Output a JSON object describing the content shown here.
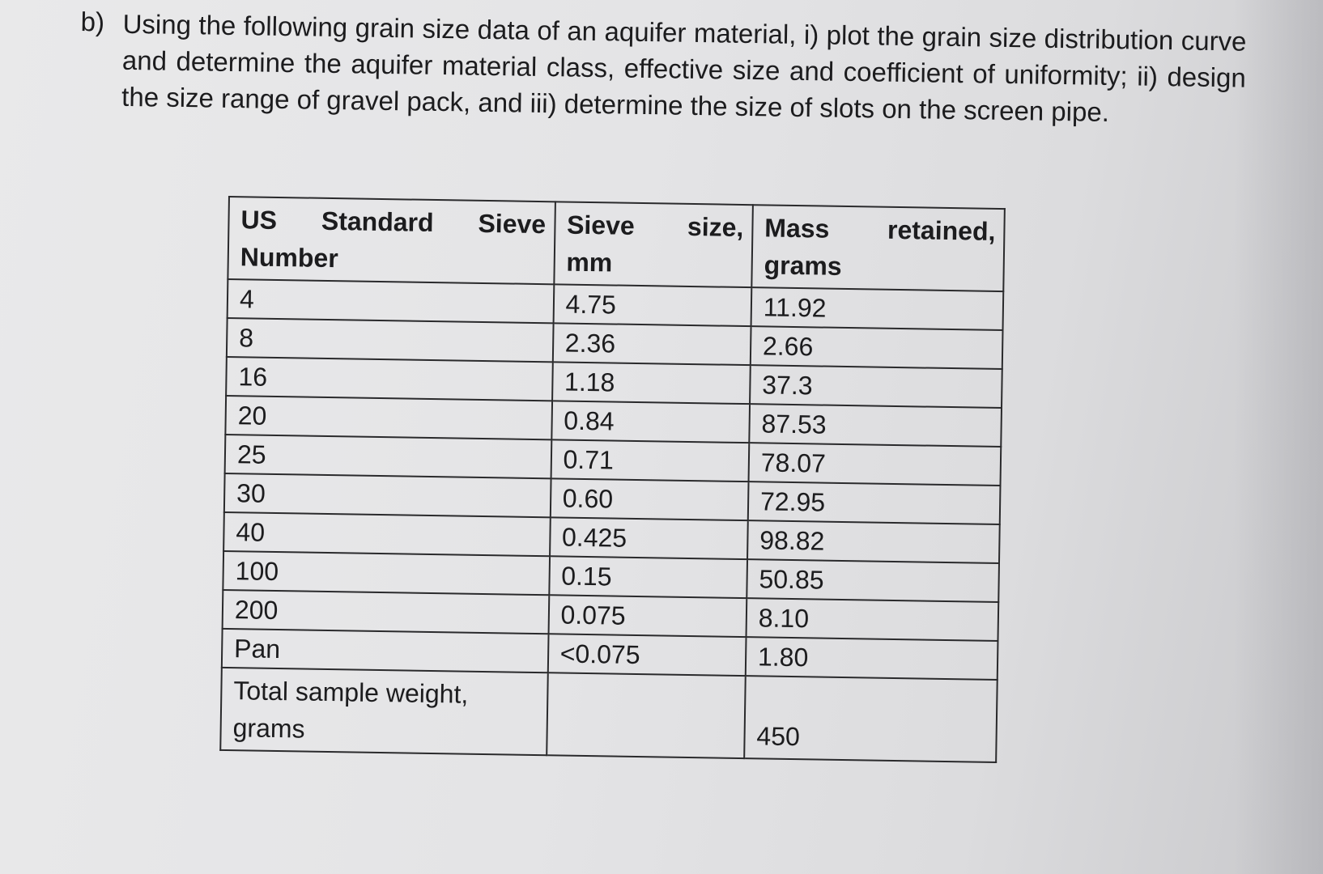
{
  "question": {
    "label": "b)",
    "text": "Using the following grain size data of an aquifer material, i) plot the grain size distribution curve and determine the aquifer material class, effective size and coefficient of uniformity; ii) design the size range of gravel pack, and iii) determine the size of slots on the screen pipe."
  },
  "table": {
    "headers": [
      "US Standard Sieve Number",
      "Sieve size, mm",
      "Mass retained, grams"
    ],
    "rows": [
      {
        "sieve_number": "4",
        "sieve_size_mm": "4.75",
        "mass_retained_g": "11.92"
      },
      {
        "sieve_number": "8",
        "sieve_size_mm": "2.36",
        "mass_retained_g": "2.66"
      },
      {
        "sieve_number": "16",
        "sieve_size_mm": "1.18",
        "mass_retained_g": "37.3"
      },
      {
        "sieve_number": "20",
        "sieve_size_mm": "0.84",
        "mass_retained_g": "87.53"
      },
      {
        "sieve_number": "25",
        "sieve_size_mm": "0.71",
        "mass_retained_g": "78.07"
      },
      {
        "sieve_number": "30",
        "sieve_size_mm": "0.60",
        "mass_retained_g": "72.95"
      },
      {
        "sieve_number": "40",
        "sieve_size_mm": "0.425",
        "mass_retained_g": "98.82"
      },
      {
        "sieve_number": "100",
        "sieve_size_mm": "0.15",
        "mass_retained_g": "50.85"
      },
      {
        "sieve_number": "200",
        "sieve_size_mm": "0.075",
        "mass_retained_g": "8.10"
      },
      {
        "sieve_number": "Pan",
        "sieve_size_mm": "<0.075",
        "mass_retained_g": "1.80"
      }
    ],
    "total": {
      "label": "Total sample weight, grams",
      "value": "450"
    }
  }
}
